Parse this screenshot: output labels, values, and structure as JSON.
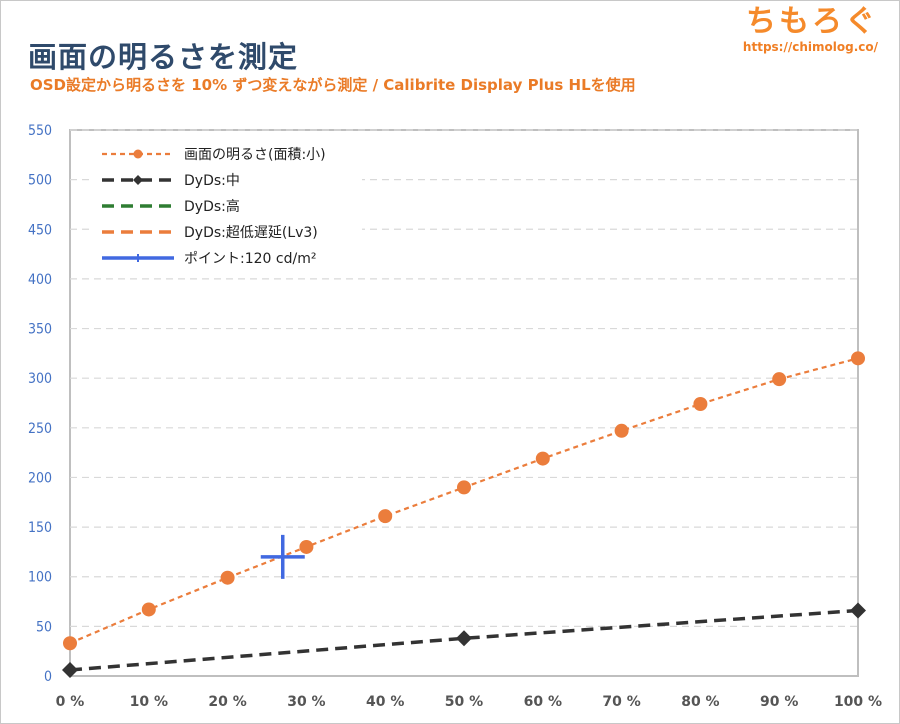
{
  "header": {
    "title": "画面の明るさを測定",
    "subtitle": "OSD設定から明るさを 10% ずつ変えながら測定 / Calibrite Display Plus HLを使用",
    "logo_text": "ちもろぐ",
    "logo_url": "https://chimolog.co/"
  },
  "colors": {
    "orange": "#eb7d3c",
    "dark": "#333333",
    "green": "#2e7d32",
    "blue": "#4169e1",
    "ytick": "#4472c4",
    "xtick": "#555555",
    "grid": "#d9d9d9"
  },
  "chart_data": {
    "type": "line",
    "title": "",
    "xlabel": "",
    "ylabel": "",
    "x": [
      "0 %",
      "10 %",
      "20 %",
      "30 %",
      "40 %",
      "50 %",
      "60 %",
      "70 %",
      "80 %",
      "90 %",
      "100 %"
    ],
    "xlim": [
      0,
      100
    ],
    "ylim": [
      0,
      550
    ],
    "yticks": [
      0,
      50,
      100,
      150,
      200,
      250,
      300,
      350,
      400,
      450,
      500,
      550
    ],
    "grid": true,
    "legend_position": "top-left",
    "series": [
      {
        "name": "画面の明るさ(面積:小)",
        "style": "dashed-circle",
        "color": "#eb7d3c",
        "points": [
          [
            0,
            33
          ],
          [
            10,
            67
          ],
          [
            20,
            99
          ],
          [
            30,
            130
          ],
          [
            40,
            161
          ],
          [
            50,
            190
          ],
          [
            60,
            219
          ],
          [
            70,
            247
          ],
          [
            80,
            274
          ],
          [
            90,
            299
          ],
          [
            100,
            320
          ]
        ]
      },
      {
        "name": "DyDs:中",
        "style": "dashed-diamond",
        "color": "#333333",
        "points": [
          [
            0,
            6
          ],
          [
            50,
            38
          ],
          [
            100,
            66
          ]
        ]
      },
      {
        "name": "DyDs:高",
        "style": "dashed",
        "color": "#2e7d32",
        "points": []
      },
      {
        "name": "DyDs:超低遅延(Lv3)",
        "style": "dashed",
        "color": "#eb7d3c",
        "points": []
      },
      {
        "name": "ポイント:120 cd/m²",
        "style": "cross",
        "color": "#4169e1",
        "points": [
          [
            27,
            120
          ]
        ]
      }
    ]
  }
}
